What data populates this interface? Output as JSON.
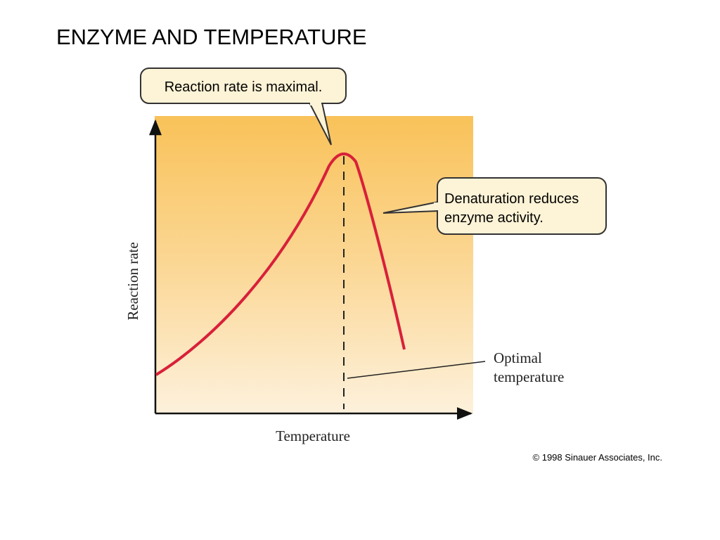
{
  "title": "ENZYME AND TEMPERATURE",
  "diagram": {
    "y_axis_label": "Reaction rate",
    "x_axis_label": "Temperature",
    "callouts": [
      {
        "lines": [
          "Reaction rate is maximal."
        ]
      },
      {
        "lines": [
          "Denaturation reduces",
          "enzyme activity."
        ]
      },
      {
        "lines": [
          "Optimal",
          "temperature"
        ]
      }
    ]
  },
  "credit": "© 1998 Sinauer Associates, Inc."
}
